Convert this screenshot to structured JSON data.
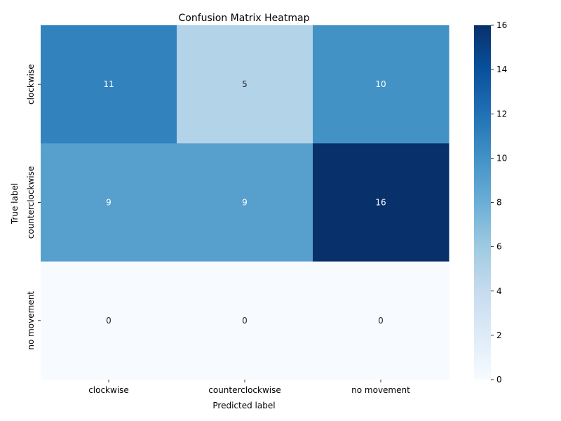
{
  "chart_data": {
    "type": "heatmap",
    "title": "Confusion Matrix Heatmap",
    "xlabel": "Predicted label",
    "ylabel": "True label",
    "x_categories": [
      "clockwise",
      "counterclockwise",
      "no movement"
    ],
    "y_categories": [
      "clockwise",
      "counterclockwise",
      "no movement"
    ],
    "values": [
      [
        11,
        5,
        10
      ],
      [
        9,
        9,
        16
      ],
      [
        0,
        0,
        0
      ]
    ],
    "colormap": "Blues",
    "color_range": [
      0,
      16
    ],
    "colorbar_ticks": [
      0,
      2,
      4,
      6,
      8,
      10,
      12,
      14,
      16
    ],
    "annotate_cells": true,
    "legend_placement": "right"
  }
}
